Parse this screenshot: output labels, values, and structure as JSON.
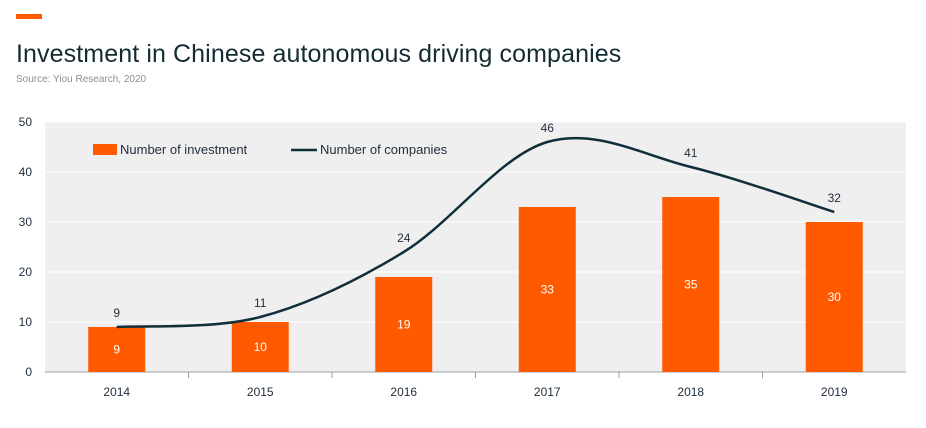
{
  "header": {
    "title": "Investment in Chinese autonomous driving companies",
    "subtitle": "Source: Yiou Research, 2020"
  },
  "colors": {
    "accent": "#ff5a00",
    "bar": "#ff5a00",
    "line": "#0f2f3a",
    "plot_background": "#efefef",
    "grid": "#ffffff",
    "text": "#1f2d3d"
  },
  "chart_data": {
    "type": "bar",
    "categories": [
      "2014",
      "2015",
      "2016",
      "2017",
      "2018",
      "2019"
    ],
    "series": [
      {
        "name": "Number of investment",
        "type": "bar",
        "values": [
          9,
          10,
          19,
          33,
          35,
          30
        ]
      },
      {
        "name": "Number of companies",
        "type": "line",
        "smooth": true,
        "values": [
          9,
          11,
          24,
          46,
          41,
          32
        ],
        "labels": [
          "9",
          "11",
          "24",
          "46",
          "41",
          "32"
        ]
      }
    ],
    "ylim": [
      0,
      50
    ],
    "yticks": [
      0,
      10,
      20,
      30,
      40,
      50
    ],
    "grid": true,
    "legend_position": "top-left",
    "data_labels": true
  }
}
